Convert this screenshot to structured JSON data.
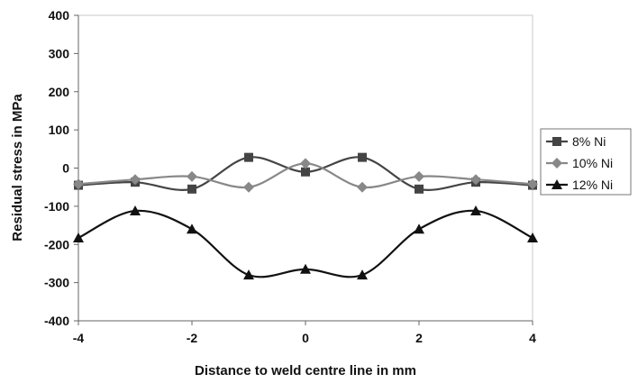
{
  "chart_data": {
    "type": "line",
    "title": "",
    "xlabel": "Distance to weld centre line in mm",
    "ylabel": "Residual stress in MPa",
    "xlim": [
      -4,
      4
    ],
    "ylim": [
      -400,
      400
    ],
    "xticks": [
      -4,
      -2,
      0,
      2,
      4
    ],
    "yticks": [
      400,
      300,
      200,
      100,
      0,
      -100,
      -200,
      -300,
      -400
    ],
    "grid": false,
    "legend_position": "right",
    "x": [
      -4,
      -3,
      -2,
      -1,
      0,
      1,
      2,
      3,
      4
    ],
    "series": [
      {
        "name": "8% Ni",
        "marker": "square",
        "color": "#444444",
        "values": [
          -45,
          -37,
          -55,
          28,
          -10,
          28,
          -55,
          -37,
          -45
        ]
      },
      {
        "name": "10% Ni",
        "marker": "diamond",
        "color": "#888888",
        "values": [
          -42,
          -30,
          -22,
          -50,
          12,
          -50,
          -22,
          -30,
          -42
        ]
      },
      {
        "name": "12% Ni",
        "marker": "triangle",
        "color": "#111111",
        "values": [
          -183,
          -112,
          -160,
          -280,
          -265,
          -280,
          -160,
          -112,
          -183
        ]
      }
    ]
  }
}
